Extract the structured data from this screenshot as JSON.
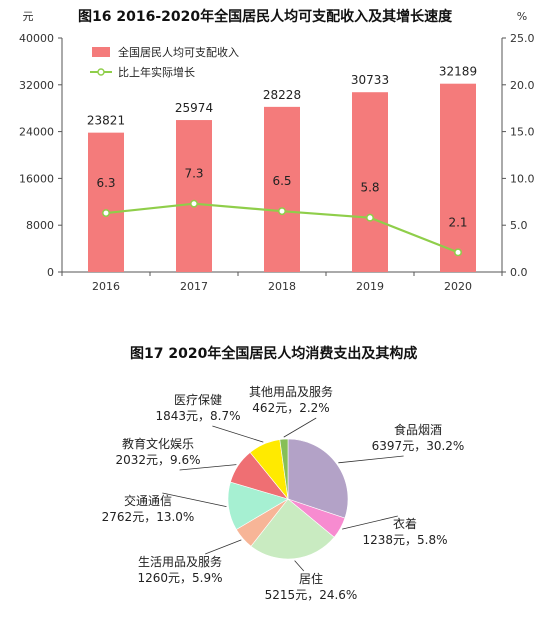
{
  "chart_data": [
    {
      "type": "bar",
      "title": "图16   2016-2020年全国居民人均可支配收入及其增长速度",
      "categories": [
        "2016",
        "2017",
        "2018",
        "2019",
        "2020"
      ],
      "series": [
        {
          "name": "全国居民人均可支配收入",
          "type": "bar",
          "axis": "left",
          "values": [
            23821,
            25974,
            28228,
            30733,
            32189
          ],
          "color": "#f47b7b"
        },
        {
          "name": "比上年实际增长",
          "type": "line",
          "axis": "right",
          "values": [
            6.3,
            7.3,
            6.5,
            5.8,
            2.1
          ],
          "color": "#8fce4a"
        }
      ],
      "ylabel_left": "元",
      "ylabel_right": "%",
      "ylim_left": [
        0,
        40000
      ],
      "yticks_left": [
        "0",
        "8000",
        "16000",
        "24000",
        "32000",
        "40000"
      ],
      "ylim_right": [
        0,
        25
      ],
      "yticks_right": [
        "0.0",
        "5.0",
        "10.0",
        "15.0",
        "20.0",
        "25.0"
      ],
      "bar_labels": [
        "23821",
        "25974",
        "28228",
        "30733",
        "32189"
      ],
      "line_labels": [
        "6.3",
        "7.3",
        "6.5",
        "5.8",
        "2.1"
      ],
      "legend": "top-left",
      "grid": false
    },
    {
      "type": "pie",
      "title": "图17   2020年全国居民人均消费支出及其构成",
      "slices": [
        {
          "label": "食品烟酒",
          "value": 6397,
          "percent": 30.2,
          "value_text": "6397元，30.2%",
          "color": "#b3a2c7"
        },
        {
          "label": "衣着",
          "value": 1238,
          "percent": 5.8,
          "value_text": "1238元，5.8%",
          "color": "#f78bd0"
        },
        {
          "label": "居住",
          "value": 5215,
          "percent": 24.6,
          "value_text": "5215元，24.6%",
          "color": "#c9ebc1"
        },
        {
          "label": "生活用品及服务",
          "value": 1260,
          "percent": 5.9,
          "value_text": "1260元，5.9%",
          "color": "#f7b597"
        },
        {
          "label": "交通通信",
          "value": 2762,
          "percent": 13.0,
          "value_text": "2762元，13.0%",
          "color": "#a6f0d2"
        },
        {
          "label": "教育文化娱乐",
          "value": 2032,
          "percent": 9.6,
          "value_text": "2032元，9.6%",
          "color": "#ef6f73"
        },
        {
          "label": "医疗保健",
          "value": 1843,
          "percent": 8.7,
          "value_text": "1843元，8.7%",
          "color": "#ffea00"
        },
        {
          "label": "其他用品及服务",
          "value": 462,
          "percent": 2.2,
          "value_text": "462元，2.2%",
          "color": "#86bf56"
        }
      ]
    }
  ]
}
